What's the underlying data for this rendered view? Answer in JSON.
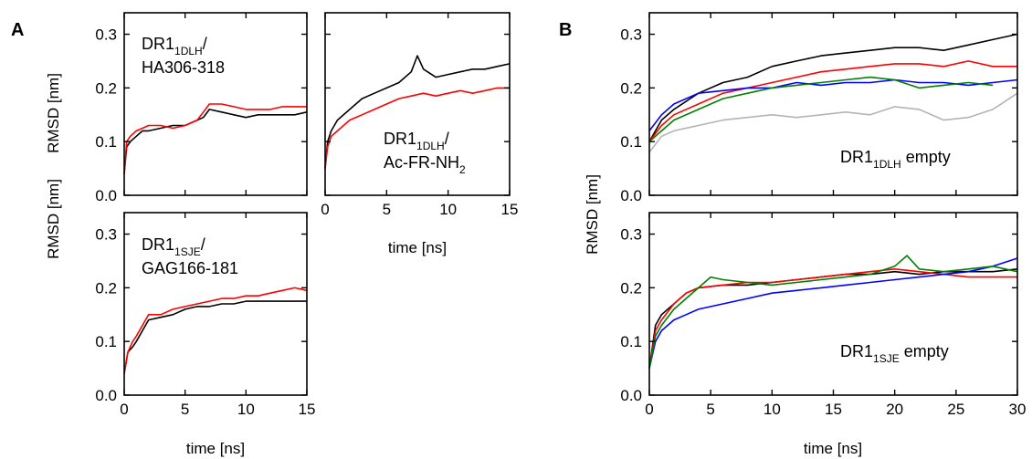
{
  "figure": {
    "panel_a": "A",
    "panel_b": "B",
    "colors": {
      "black": "#000000",
      "red": "#ff0000",
      "blue": "#0000ff",
      "green": "#008000",
      "gray": "#b4b4b4"
    }
  },
  "chart_data": [
    {
      "id": "a1",
      "type": "line",
      "annotation": {
        "main": "DR1",
        "sub": "1DLH",
        "suffix": "/",
        "line2": "HA306-318"
      },
      "xlabel": "",
      "ylabel": "RMSD [nm]",
      "xlim": [
        0,
        15
      ],
      "ylim": [
        0,
        0.34
      ],
      "xticks": [
        0,
        5,
        10,
        15
      ],
      "yticks": [
        0.0,
        0.1,
        0.2,
        0.3
      ],
      "ytick_labels": [
        "0.0",
        "0.1",
        "0.2",
        "0.3"
      ],
      "show_xtick_labels": false,
      "series": [
        {
          "color": "black",
          "x": [
            0,
            0.2,
            0.5,
            1,
            1.5,
            2,
            3,
            4,
            5,
            6,
            6.5,
            7,
            8,
            9,
            10,
            11,
            12,
            13,
            14,
            15
          ],
          "y": [
            0.04,
            0.09,
            0.1,
            0.11,
            0.12,
            0.12,
            0.125,
            0.13,
            0.13,
            0.14,
            0.145,
            0.16,
            0.155,
            0.15,
            0.145,
            0.15,
            0.15,
            0.15,
            0.15,
            0.155
          ]
        },
        {
          "color": "red",
          "x": [
            0,
            0.2,
            0.5,
            1,
            1.5,
            2,
            3,
            4,
            5,
            6,
            6.5,
            7,
            8,
            9,
            10,
            11,
            12,
            13,
            14,
            15
          ],
          "y": [
            0.04,
            0.1,
            0.11,
            0.12,
            0.125,
            0.13,
            0.13,
            0.125,
            0.13,
            0.14,
            0.155,
            0.17,
            0.17,
            0.165,
            0.16,
            0.16,
            0.16,
            0.165,
            0.165,
            0.165
          ]
        }
      ]
    },
    {
      "id": "a2",
      "type": "line",
      "annotation": {
        "main": "DR1",
        "sub": "1DLH",
        "suffix": "/",
        "line2": "Ac-FR-NH",
        "line2_sub": "2"
      },
      "xlabel": "time [ns]",
      "ylabel": "",
      "xlim": [
        0,
        15
      ],
      "ylim": [
        0,
        0.34
      ],
      "xticks": [
        0,
        5,
        10,
        15
      ],
      "yticks": [
        0.0,
        0.1,
        0.2,
        0.3
      ],
      "xtick_labels": [
        "0",
        "5",
        "10",
        "15"
      ],
      "show_ytick_labels": false,
      "series": [
        {
          "color": "black",
          "x": [
            0,
            0.2,
            0.5,
            1,
            2,
            3,
            4,
            5,
            6,
            7,
            7.5,
            8,
            9,
            10,
            11,
            12,
            13,
            14,
            15
          ],
          "y": [
            0.05,
            0.1,
            0.12,
            0.14,
            0.16,
            0.18,
            0.19,
            0.2,
            0.21,
            0.23,
            0.26,
            0.235,
            0.22,
            0.225,
            0.23,
            0.235,
            0.235,
            0.24,
            0.245
          ]
        },
        {
          "color": "red",
          "x": [
            0,
            0.2,
            0.5,
            1,
            2,
            3,
            4,
            5,
            6,
            7,
            8,
            9,
            10,
            11,
            12,
            13,
            14,
            15
          ],
          "y": [
            0.05,
            0.09,
            0.11,
            0.12,
            0.14,
            0.15,
            0.16,
            0.17,
            0.18,
            0.185,
            0.19,
            0.185,
            0.19,
            0.195,
            0.19,
            0.195,
            0.2,
            0.2
          ]
        }
      ]
    },
    {
      "id": "a3",
      "type": "line",
      "annotation": {
        "main": "DR1",
        "sub": "1SJE",
        "suffix": "/",
        "line2": "GAG166-181"
      },
      "xlabel": "time [ns]",
      "ylabel": "RMSD [nm]",
      "xlim": [
        0,
        15
      ],
      "ylim": [
        0,
        0.34
      ],
      "xticks": [
        0,
        5,
        10,
        15
      ],
      "yticks": [
        0.0,
        0.1,
        0.2,
        0.3
      ],
      "xtick_labels": [
        "0",
        "5",
        "10",
        "15"
      ],
      "ytick_labels": [
        "0.0",
        "0.1",
        "0.2",
        "0.3"
      ],
      "series": [
        {
          "color": "black",
          "x": [
            0,
            0.3,
            0.7,
            1,
            1.5,
            2,
            3,
            4,
            5,
            6,
            7,
            8,
            9,
            10,
            11,
            12,
            13,
            14,
            15
          ],
          "y": [
            0.04,
            0.08,
            0.09,
            0.1,
            0.12,
            0.14,
            0.145,
            0.15,
            0.16,
            0.165,
            0.165,
            0.17,
            0.17,
            0.175,
            0.175,
            0.175,
            0.175,
            0.175,
            0.175
          ]
        },
        {
          "color": "red",
          "x": [
            0,
            0.3,
            0.7,
            1,
            1.5,
            2,
            3,
            4,
            5,
            6,
            7,
            8,
            9,
            10,
            11,
            12,
            13,
            14,
            15
          ],
          "y": [
            0.04,
            0.08,
            0.1,
            0.11,
            0.13,
            0.15,
            0.15,
            0.16,
            0.165,
            0.17,
            0.175,
            0.18,
            0.18,
            0.185,
            0.185,
            0.19,
            0.195,
            0.2,
            0.195
          ]
        }
      ]
    },
    {
      "id": "b1",
      "type": "line",
      "annotation": {
        "main": "DR1",
        "sub": "1DLH",
        "suffix": " empty"
      },
      "xlabel": "",
      "ylabel": "RMSD [nm]",
      "xlim": [
        0,
        30
      ],
      "ylim": [
        0,
        0.34
      ],
      "xticks": [
        0,
        5,
        10,
        15,
        20,
        25,
        30
      ],
      "yticks": [
        0.0,
        0.1,
        0.2,
        0.3
      ],
      "ytick_labels": [
        "0.0",
        "0.1",
        "0.2",
        "0.3"
      ],
      "show_xtick_labels": false,
      "series": [
        {
          "color": "black",
          "x": [
            0,
            1,
            2,
            4,
            6,
            8,
            10,
            12,
            14,
            16,
            18,
            20,
            22,
            24,
            26,
            28,
            30
          ],
          "y": [
            0.1,
            0.14,
            0.16,
            0.19,
            0.21,
            0.22,
            0.24,
            0.25,
            0.26,
            0.265,
            0.27,
            0.275,
            0.275,
            0.27,
            0.28,
            0.29,
            0.3
          ]
        },
        {
          "color": "red",
          "x": [
            0,
            1,
            2,
            4,
            6,
            8,
            10,
            12,
            14,
            16,
            18,
            20,
            22,
            24,
            26,
            28,
            30
          ],
          "y": [
            0.1,
            0.13,
            0.15,
            0.17,
            0.19,
            0.2,
            0.21,
            0.22,
            0.23,
            0.235,
            0.24,
            0.245,
            0.245,
            0.24,
            0.25,
            0.24,
            0.24
          ]
        },
        {
          "color": "blue",
          "x": [
            0,
            1,
            2,
            4,
            6,
            8,
            10,
            12,
            14,
            16,
            18,
            20,
            22,
            24,
            26,
            28,
            30
          ],
          "y": [
            0.12,
            0.15,
            0.17,
            0.19,
            0.195,
            0.2,
            0.2,
            0.21,
            0.205,
            0.21,
            0.21,
            0.215,
            0.21,
            0.21,
            0.205,
            0.21,
            0.215
          ]
        },
        {
          "color": "green",
          "x": [
            0,
            1,
            2,
            4,
            6,
            8,
            10,
            12,
            14,
            16,
            18,
            20,
            22,
            24,
            26,
            28
          ],
          "y": [
            0.1,
            0.12,
            0.14,
            0.16,
            0.18,
            0.19,
            0.2,
            0.205,
            0.21,
            0.215,
            0.22,
            0.215,
            0.2,
            0.205,
            0.21,
            0.205
          ]
        },
        {
          "color": "gray",
          "x": [
            0,
            1,
            2,
            4,
            6,
            8,
            10,
            12,
            14,
            16,
            18,
            20,
            22,
            24,
            26,
            28,
            30
          ],
          "y": [
            0.08,
            0.11,
            0.12,
            0.13,
            0.14,
            0.145,
            0.15,
            0.145,
            0.15,
            0.155,
            0.15,
            0.165,
            0.16,
            0.14,
            0.145,
            0.16,
            0.19
          ]
        }
      ]
    },
    {
      "id": "b2",
      "type": "line",
      "annotation": {
        "main": "DR1",
        "sub": "1SJE",
        "suffix": " empty"
      },
      "xlabel": "time [ns]",
      "ylabel": "RMSD [nm]",
      "xlim": [
        0,
        30
      ],
      "ylim": [
        0,
        0.34
      ],
      "xticks": [
        0,
        5,
        10,
        15,
        20,
        25,
        30
      ],
      "yticks": [
        0.0,
        0.1,
        0.2,
        0.3
      ],
      "xtick_labels": [
        "0",
        "5",
        "10",
        "15",
        "20",
        "25",
        "30"
      ],
      "ytick_labels": [
        "0.0",
        "0.1",
        "0.2",
        "0.3"
      ],
      "series": [
        {
          "color": "black",
          "x": [
            0,
            0.5,
            1,
            2,
            3,
            4,
            6,
            8,
            10,
            12,
            14,
            16,
            18,
            20,
            22,
            24,
            26,
            28,
            30
          ],
          "y": [
            0.05,
            0.13,
            0.15,
            0.17,
            0.19,
            0.2,
            0.205,
            0.205,
            0.21,
            0.215,
            0.22,
            0.225,
            0.225,
            0.23,
            0.225,
            0.23,
            0.23,
            0.23,
            0.235
          ]
        },
        {
          "color": "red",
          "x": [
            0,
            0.5,
            1,
            2,
            3,
            4,
            6,
            8,
            10,
            12,
            14,
            16,
            18,
            20,
            22,
            24,
            26,
            28,
            30
          ],
          "y": [
            0.05,
            0.12,
            0.14,
            0.17,
            0.19,
            0.2,
            0.205,
            0.21,
            0.21,
            0.215,
            0.22,
            0.225,
            0.23,
            0.235,
            0.23,
            0.225,
            0.22,
            0.22,
            0.22
          ]
        },
        {
          "color": "blue",
          "x": [
            0,
            0.5,
            1,
            2,
            3,
            4,
            6,
            8,
            10,
            12,
            14,
            16,
            18,
            20,
            22,
            24,
            26,
            28,
            30
          ],
          "y": [
            0.05,
            0.1,
            0.12,
            0.14,
            0.15,
            0.16,
            0.17,
            0.18,
            0.19,
            0.195,
            0.2,
            0.205,
            0.21,
            0.215,
            0.22,
            0.225,
            0.23,
            0.24,
            0.255
          ]
        },
        {
          "color": "green",
          "x": [
            0,
            0.5,
            1,
            2,
            3,
            4,
            5,
            6,
            8,
            10,
            12,
            14,
            16,
            18,
            20,
            21,
            22,
            24,
            26,
            28,
            30
          ],
          "y": [
            0.05,
            0.11,
            0.13,
            0.16,
            0.18,
            0.2,
            0.22,
            0.215,
            0.21,
            0.205,
            0.21,
            0.215,
            0.22,
            0.225,
            0.24,
            0.26,
            0.235,
            0.23,
            0.235,
            0.24,
            0.23
          ]
        }
      ]
    }
  ]
}
